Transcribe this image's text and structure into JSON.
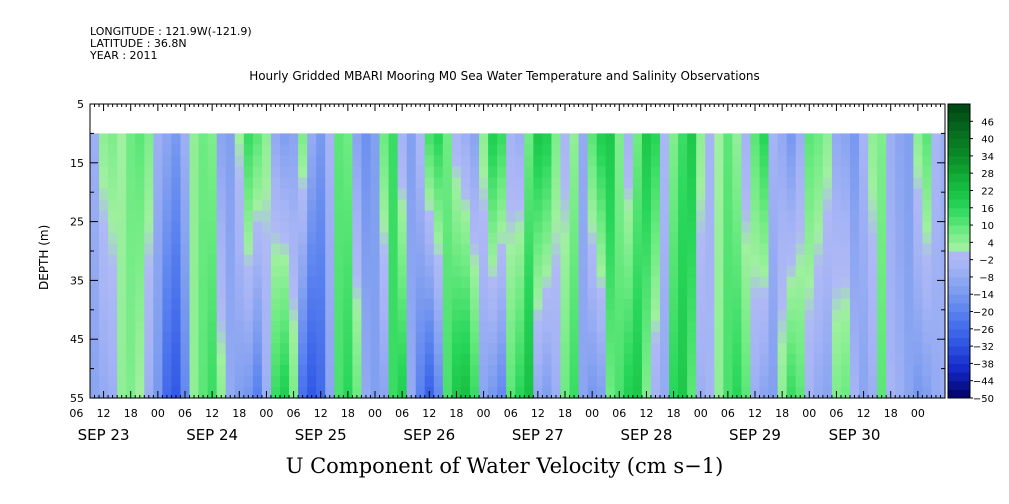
{
  "meta": {
    "longitude": "LONGITUDE : 121.9W(-121.9)",
    "latitude": "LATITUDE : 36.8N",
    "year": "YEAR : 2011"
  },
  "chart_data": {
    "type": "heatmap",
    "title": "Hourly Gridded MBARI Mooring M0 Sea Water Temperature and Salinity Observations",
    "xlabel": "U Component of Water Velocity (cm s−1)",
    "ylabel": "DEPTH (m)",
    "x_start_hour": 9,
    "x_end_hour": 198,
    "data_start_hour": 9,
    "data_top_depth": 10,
    "ylim": [
      55,
      5
    ],
    "y_ticks": [
      5,
      15,
      25,
      35,
      45,
      55
    ],
    "hour_ticks": [
      "06",
      "12",
      "18",
      "00",
      "06",
      "12",
      "18",
      "00",
      "06",
      "12",
      "18",
      "00",
      "06",
      "12",
      "18",
      "00",
      "06",
      "12",
      "18",
      "00",
      "06",
      "12",
      "18",
      "00",
      "06",
      "12",
      "18",
      "00",
      "06",
      "12",
      "18",
      "00"
    ],
    "hour_tick_hours": [
      6,
      12,
      18,
      24,
      30,
      36,
      42,
      48,
      54,
      60,
      66,
      72,
      78,
      84,
      90,
      96,
      102,
      108,
      114,
      120,
      126,
      132,
      138,
      144,
      150,
      156,
      162,
      168,
      174,
      180,
      186,
      192
    ],
    "day_labels": [
      "SEP 23",
      "SEP 24",
      "SEP 25",
      "SEP 26",
      "SEP 27",
      "SEP 28",
      "SEP 29",
      "SEP 30"
    ],
    "day_label_hours": [
      12,
      36,
      60,
      84,
      108,
      132,
      156,
      178
    ],
    "colorbar": {
      "ticks": [
        46,
        40,
        34,
        28,
        22,
        16,
        10,
        4,
        -2,
        -8,
        -14,
        -20,
        -26,
        -32,
        -38,
        -44,
        -50
      ],
      "min": -50,
      "max": 52
    },
    "columns": {
      "hours": [
        9,
        11,
        13,
        15,
        17,
        19,
        21,
        23,
        25,
        27,
        29,
        31,
        33,
        35,
        37,
        39,
        41,
        43,
        45,
        47,
        49,
        51,
        53,
        55,
        57,
        59,
        61,
        63,
        65,
        67,
        69,
        71,
        73,
        75,
        77,
        79,
        81,
        83,
        85,
        87,
        89,
        91,
        93,
        95,
        97,
        99,
        101,
        103,
        105,
        107,
        109,
        111,
        113,
        115,
        117,
        119,
        121,
        123,
        125,
        127,
        129,
        131,
        133,
        135,
        137,
        139,
        141,
        143,
        145,
        147,
        149,
        151,
        153,
        155,
        157,
        159,
        161,
        163,
        165,
        167,
        169,
        171,
        173,
        175,
        177,
        179,
        181,
        183,
        185,
        187,
        189,
        191,
        193,
        195,
        197
      ],
      "u_top": [
        -6,
        4,
        6,
        2,
        8,
        10,
        6,
        -6,
        -10,
        -14,
        -6,
        4,
        8,
        6,
        -10,
        -12,
        2,
        14,
        10,
        4,
        -8,
        -12,
        -10,
        6,
        -8,
        -14,
        -4,
        10,
        8,
        -10,
        -16,
        -12,
        8,
        14,
        -4,
        -12,
        -2,
        12,
        16,
        8,
        -2,
        -6,
        -10,
        4,
        18,
        14,
        -4,
        -6,
        8,
        20,
        18,
        6,
        -2,
        4,
        -8,
        10,
        18,
        20,
        6,
        -4,
        8,
        20,
        16,
        -2,
        6,
        14,
        20,
        4,
        -4,
        2,
        10,
        4,
        -4,
        10,
        16,
        -4,
        -8,
        -14,
        -6,
        10,
        8,
        4,
        -8,
        -10,
        -14,
        -4,
        4,
        6,
        -6,
        -10,
        -12,
        4,
        10,
        -2,
        -6
      ],
      "u_bottom": [
        -10,
        -8,
        -6,
        4,
        6,
        2,
        -6,
        -14,
        -26,
        -30,
        -18,
        4,
        10,
        14,
        4,
        -8,
        -12,
        -14,
        -20,
        -6,
        14,
        18,
        6,
        -24,
        -30,
        -26,
        -10,
        12,
        16,
        8,
        -8,
        -12,
        -10,
        14,
        18,
        -8,
        -20,
        -28,
        -18,
        12,
        20,
        22,
        14,
        -10,
        -14,
        -18,
        10,
        16,
        22,
        -8,
        -12,
        -6,
        8,
        14,
        -10,
        -14,
        -12,
        8,
        12,
        18,
        20,
        6,
        -4,
        -8,
        16,
        20,
        10,
        -6,
        -4,
        4,
        12,
        16,
        10,
        -6,
        -10,
        -12,
        4,
        14,
        10,
        -4,
        -8,
        -10,
        6,
        8,
        -4,
        -10,
        -6,
        10,
        -4,
        -6,
        -10,
        -14,
        -12,
        -8,
        -6
      ]
    }
  }
}
